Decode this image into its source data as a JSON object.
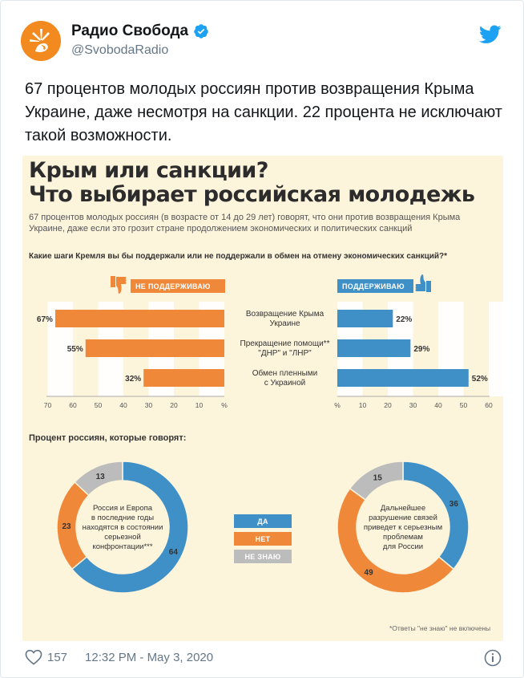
{
  "tweet": {
    "author_name": "Радио Свобода",
    "handle": "@SvobodaRadio",
    "text": "67 процентов молодых россиян против возвращения Крыма Украине, даже несмотря на санкции. 22 процента не исключают такой возможности.",
    "likes": "157",
    "timestamp": "12:32 PM - May 3, 2020",
    "icons": {
      "avatar": "radio-svoboda-logo",
      "verified": "verified-badge-icon",
      "bird": "twitter-bird-icon",
      "like": "heart-icon",
      "info": "info-icon"
    }
  },
  "infographic": {
    "title_line1": "Крым или санкции?",
    "title_line2": "Что выбирает российская молодежь",
    "subtitle": "67 процентов молодых россиян (в возрасте от 14 до 29 лет) говорят, что они против возвращения Крыма Украине, даже если это грозит стране продолжением экономических и политических санкций",
    "question1": "Какие шаги Кремля вы бы поддержали или не поддержали в обмен на отмену экономических санкций?*",
    "not_support_label": "НЕ ПОДДЕРЖИВАЮ",
    "support_label": "ПОДДЕРЖИВАЮ",
    "question2": "Процент россиян, которые говорят:",
    "legend": {
      "yes": "ДА",
      "no": "НЕТ",
      "dont_know": "НЕ ЗНАЮ"
    },
    "footnote": "*Ответы \"не знаю\" не включены",
    "colors": {
      "orange": "#f0883a",
      "blue": "#3e90c7",
      "gray": "#bcbcbc",
      "background": "#fdf4dc"
    }
  },
  "chart_data": [
    {
      "type": "bar",
      "categories": [
        "Возвращение Крыма Украине",
        "Прекращение помощи** \"ДНР\" и \"ЛНР\"",
        "Обмен пленными с Украиной"
      ],
      "category_lines": [
        [
          "Возвращение Крыма",
          "Украине"
        ],
        [
          "Прекращение помощи**",
          "\"ДНР\" и \"ЛНР\""
        ],
        [
          "Обмен пленными",
          "с Украиной"
        ]
      ],
      "series": [
        {
          "name": "НЕ ПОДДЕРЖИВАЮ",
          "values": [
            67,
            55,
            32
          ],
          "labels": [
            "67%",
            "55%",
            "32%"
          ]
        },
        {
          "name": "ПОДДЕРЖИВАЮ",
          "values": [
            22,
            29,
            52
          ],
          "labels": [
            "22%",
            "29%",
            "52%"
          ]
        }
      ],
      "left_ticks": [
        "70",
        "60",
        "50",
        "40",
        "30",
        "20",
        "10",
        "%"
      ],
      "right_ticks": [
        "%",
        "10",
        "20",
        "30",
        "40",
        "50",
        "60"
      ],
      "xlim": [
        0,
        70
      ]
    },
    {
      "type": "pie",
      "center_label": [
        "Россия и Европа",
        "в последние годы",
        "находятся в состоянии",
        "серьезной",
        "конфронтации***"
      ],
      "categories": [
        "ДА",
        "НЕТ",
        "НЕ ЗНАЮ"
      ],
      "values": [
        64,
        23,
        13
      ]
    },
    {
      "type": "pie",
      "center_label": [
        "Дальнейшее",
        "разрушение связей",
        "приведет к серьезным",
        "проблемам",
        "для России"
      ],
      "categories": [
        "ДА",
        "НЕТ",
        "НЕ ЗНАЮ"
      ],
      "values": [
        36,
        49,
        15
      ]
    }
  ]
}
